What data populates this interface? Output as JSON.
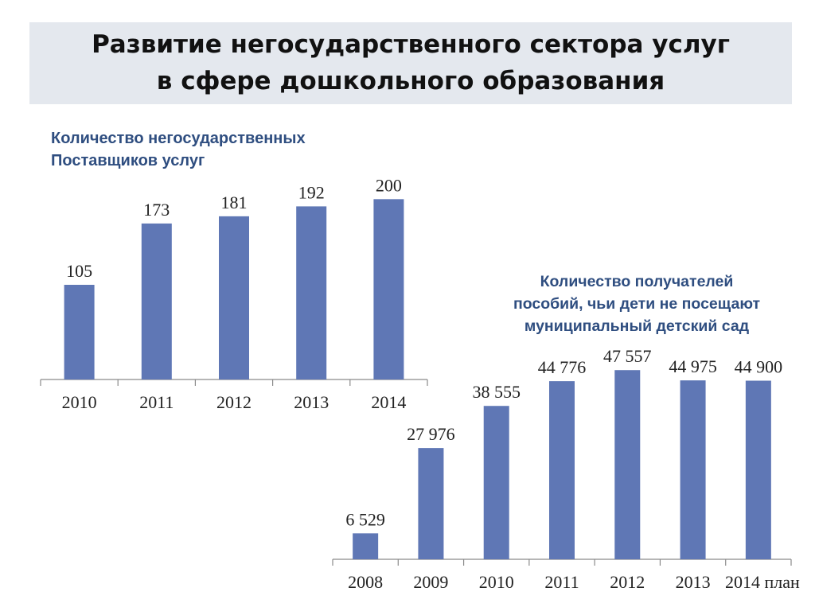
{
  "slide": {
    "title_line1": "Развитие негосударственного сектора услуг",
    "title_line2": "в сфере дошкольного образования"
  },
  "colors": {
    "bar": "#5f77b5",
    "axis": "#8a8a8a",
    "title_band": "#e4e8ee",
    "chart_title": "#2f4e80"
  },
  "chart_data": [
    {
      "type": "bar",
      "title_line1": "Количество негосударственных",
      "title_line2": "Поставщиков услуг",
      "categories": [
        "2010",
        "2011",
        "2012",
        "2013",
        "2014"
      ],
      "values": [
        105,
        173,
        181,
        192,
        200
      ],
      "value_labels": [
        "105",
        "173",
        "181",
        "192",
        "200"
      ],
      "ylim": [
        0,
        225
      ],
      "grid": false,
      "legend": "none"
    },
    {
      "type": "bar",
      "title_line1": "Количество получателей",
      "title_line2": "пособий, чьи дети не посещают",
      "title_line3": "муниципальный детский сад",
      "categories": [
        "2008",
        "2009",
        "2010",
        "2011",
        "2012",
        "2013",
        "2014 план"
      ],
      "values": [
        6529,
        27976,
        38555,
        44776,
        47557,
        44975,
        44900
      ],
      "value_labels": [
        "6 529",
        "27 976",
        "38 555",
        "44 776",
        "47 557",
        "44 975",
        "44 900"
      ],
      "ylim": [
        0,
        51800
      ],
      "grid": false,
      "legend": "none"
    }
  ]
}
